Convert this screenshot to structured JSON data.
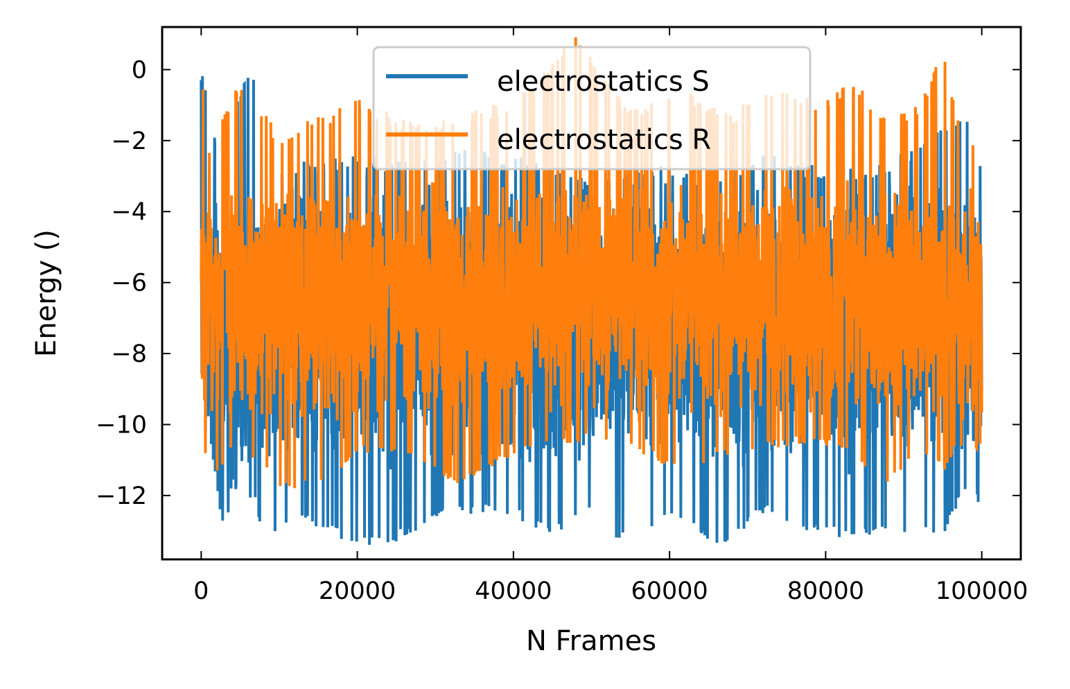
{
  "chart_data": {
    "type": "line",
    "title": "",
    "xlabel": "N Frames",
    "ylabel": "Energy ()",
    "xlim": [
      -5000,
      105000
    ],
    "ylim": [
      -13.8,
      1.2
    ],
    "x_ticks": [
      0,
      20000,
      40000,
      60000,
      80000,
      100000
    ],
    "y_ticks": [
      0,
      -2,
      -4,
      -6,
      -8,
      -10,
      -12
    ],
    "x_tick_labels": [
      "0",
      "20000",
      "40000",
      "60000",
      "80000",
      "100000"
    ],
    "y_tick_labels": [
      "0",
      "−2",
      "−4",
      "−6",
      "−8",
      "−10",
      "−12"
    ],
    "grid": false,
    "legend_position": "top-center",
    "series": [
      {
        "name": "electrostatics S",
        "color": "#1f77b4",
        "x_range": [
          0,
          100000
        ],
        "summary": {
          "min": -13.2,
          "max": -0.2,
          "typical_low": -11.5,
          "typical_high": -3.0
        },
        "envelope": [
          {
            "x": 0,
            "high": -0.3,
            "low": -8.3
          },
          {
            "x": 2000,
            "high": -2.5,
            "low": -11.5
          },
          {
            "x": 3000,
            "high": -2.6,
            "low": -13.0
          },
          {
            "x": 4000,
            "high": -1.4,
            "low": -11.5
          },
          {
            "x": 7000,
            "high": -0.2,
            "low": -12.0
          },
          {
            "x": 8000,
            "high": -3.5,
            "low": -13.0
          },
          {
            "x": 12000,
            "high": -3.0,
            "low": -12.3
          },
          {
            "x": 20000,
            "high": -2.8,
            "low": -13.2
          },
          {
            "x": 25000,
            "high": -2.9,
            "low": -13.0
          },
          {
            "x": 32000,
            "high": -2.6,
            "low": -12.2
          },
          {
            "x": 40000,
            "high": -2.7,
            "low": -12.3
          },
          {
            "x": 45000,
            "high": -3.2,
            "low": -12.9
          },
          {
            "x": 52000,
            "high": -3.5,
            "low": -12.0
          },
          {
            "x": 53000,
            "high": -3.4,
            "low": -13.1
          },
          {
            "x": 60000,
            "high": -3.0,
            "low": -12.4
          },
          {
            "x": 67000,
            "high": -3.5,
            "low": -13.2
          },
          {
            "x": 72000,
            "high": -2.5,
            "low": -12.2
          },
          {
            "x": 76000,
            "high": -3.0,
            "low": -12.6
          },
          {
            "x": 84000,
            "high": -3.2,
            "low": -13.0
          },
          {
            "x": 88000,
            "high": -3.0,
            "low": -12.7
          },
          {
            "x": 95000,
            "high": -2.0,
            "low": -12.9
          },
          {
            "x": 99000,
            "high": -1.7,
            "low": -11.0
          },
          {
            "x": 100000,
            "high": -3.0,
            "low": -12.7
          }
        ]
      },
      {
        "name": "electrostatics R",
        "color": "#ff7f0e",
        "x_range": [
          0,
          100000
        ],
        "summary": {
          "min": -11.6,
          "max": 0.6,
          "typical_low": -10.0,
          "typical_high": -3.0
        },
        "envelope": [
          {
            "x": 0,
            "high": -0.2,
            "low": -10.0
          },
          {
            "x": 1000,
            "high": -2.5,
            "low": -11.3
          },
          {
            "x": 5000,
            "high": -0.6,
            "low": -10.3
          },
          {
            "x": 10000,
            "high": -2.2,
            "low": -11.6
          },
          {
            "x": 17000,
            "high": -1.5,
            "low": -11.5
          },
          {
            "x": 20000,
            "high": -1.2,
            "low": -10.5
          },
          {
            "x": 27000,
            "high": -1.8,
            "low": -10.8
          },
          {
            "x": 33000,
            "high": -1.7,
            "low": -11.4
          },
          {
            "x": 40000,
            "high": -1.2,
            "low": -10.6
          },
          {
            "x": 48000,
            "high": 0.6,
            "low": -10.2
          },
          {
            "x": 55000,
            "high": -1.5,
            "low": -10.4
          },
          {
            "x": 62000,
            "high": -1.0,
            "low": -11.1
          },
          {
            "x": 68000,
            "high": -1.6,
            "low": -10.6
          },
          {
            "x": 72000,
            "high": -0.9,
            "low": -10.4
          },
          {
            "x": 79000,
            "high": -1.2,
            "low": -10.2
          },
          {
            "x": 84000,
            "high": -0.7,
            "low": -10.8
          },
          {
            "x": 88000,
            "high": -1.9,
            "low": -11.4
          },
          {
            "x": 92000,
            "high": -1.3,
            "low": -10.4
          },
          {
            "x": 95000,
            "high": 0.2,
            "low": -11.1
          },
          {
            "x": 97000,
            "high": -1.5,
            "low": -10.3
          },
          {
            "x": 100000,
            "high": -3.0,
            "low": -10.4
          }
        ]
      }
    ]
  }
}
